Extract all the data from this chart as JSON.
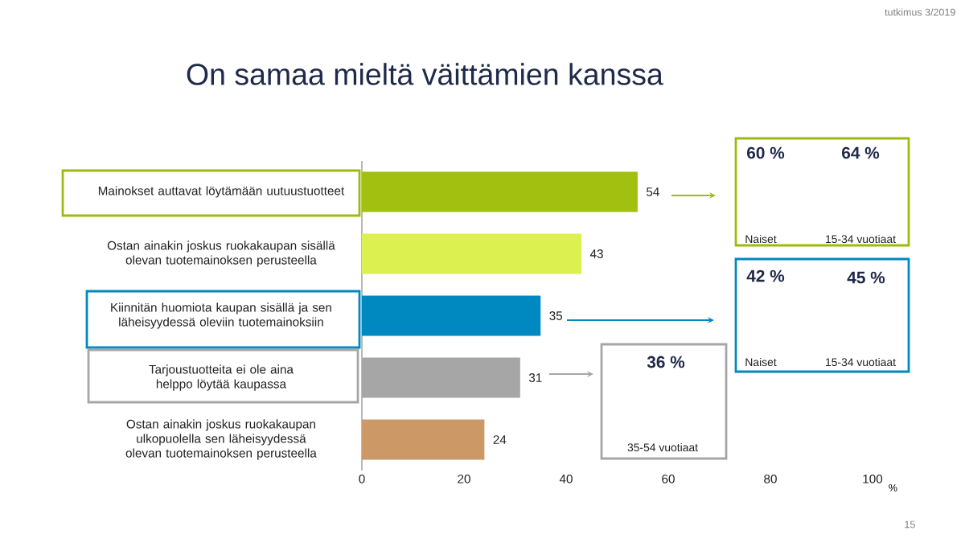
{
  "chart_data": {
    "type": "bar",
    "orientation": "horizontal",
    "title": "On samaa mieltä väittämien kanssa",
    "categories": [
      "Mainokset auttavat löytämään uutuustuotteet",
      "Ostan ainakin joskus ruokakaupan sisällä olevan tuotemainoksen perusteella",
      "Kiinnitän huomiota kaupan sisällä ja sen läheisyydessä oleviin tuotemainoksiin",
      "Tarjoustuotteita ei ole aina helppo löytää kaupassa",
      "Ostan ainakin joskus ruokakaupan ulkopuolella sen läheisyydessä olevan tuotemainoksen perusteella"
    ],
    "values": [
      54,
      43,
      35,
      31,
      24
    ],
    "colors": [
      "#a2c010",
      "#dcf050",
      "#0088c0",
      "#a6a6a6",
      "#cc9966"
    ],
    "xlim": [
      0,
      100
    ],
    "xticks": [
      0,
      20,
      40,
      60,
      80,
      100
    ],
    "xlabel": "%",
    "data_labels": true,
    "annotations": [
      "60 %",
      "64 %",
      "Naiset",
      "15-34 vuotiaat",
      "42 %",
      "45 %",
      "Naiset",
      "15-34 vuotiaat",
      "36 %",
      "35-54 vuotiaat",
      "tutkimus 3/2019",
      "15"
    ]
  }
}
